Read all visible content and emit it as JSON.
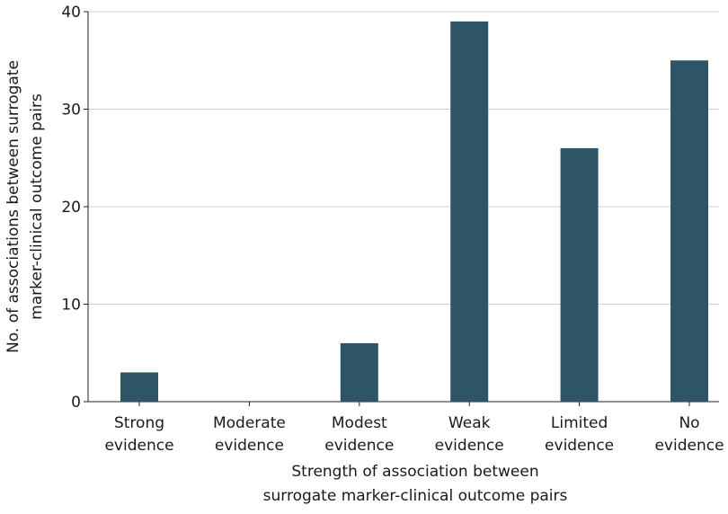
{
  "chart_data": {
    "type": "bar",
    "x_label": [
      "Strength of association between",
      "surrogate marker-clinical outcome pairs"
    ],
    "y_label": [
      "No. of associations between surrogate",
      "marker-clinical outcome pairs"
    ],
    "categories": [
      "Strong evidence",
      "Moderate evidence",
      "Modest evidence",
      "Weak evidence",
      "Limited evidence",
      "No evidence"
    ],
    "values": [
      3,
      0,
      6,
      39,
      26,
      35
    ],
    "color": "#2e5566",
    "ylim": [
      0,
      40
    ],
    "yticks": [
      0,
      10,
      20,
      30,
      40
    ],
    "grid": true
  }
}
